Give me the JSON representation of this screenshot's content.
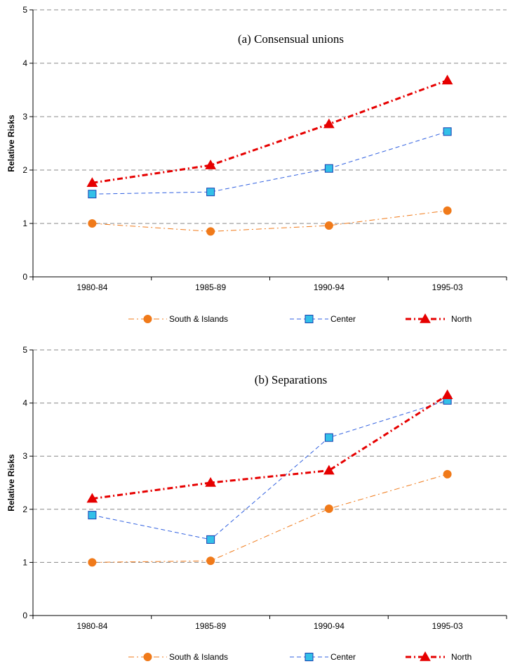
{
  "chart_data": [
    {
      "type": "line",
      "title": "(a) Consensual unions",
      "xlabel": "",
      "ylabel": "Relative Risks",
      "categories": [
        "1980-84",
        "1985-89",
        "1990-94",
        "1995-03"
      ],
      "ylim": [
        0,
        5
      ],
      "yticks": [
        0,
        1,
        2,
        3,
        4,
        5
      ],
      "grid": "horizontal dashed",
      "legend_position": "bottom",
      "series": [
        {
          "name": "South & Islands",
          "values": [
            1.0,
            0.85,
            0.96,
            1.24
          ],
          "color": "#f07a1a",
          "marker": "circle",
          "dash": "dash-dot",
          "width": 1
        },
        {
          "name": "Center",
          "values": [
            1.55,
            1.59,
            2.03,
            2.72
          ],
          "color": "#3060e0",
          "marker": "square",
          "dash": "dash",
          "width": 1
        },
        {
          "name": "North",
          "values": [
            1.76,
            2.09,
            2.86,
            3.68
          ],
          "color": "#e60000",
          "marker": "triangle",
          "dash": "dash-dot",
          "width": 3
        }
      ]
    },
    {
      "type": "line",
      "title": "(b) Separations",
      "xlabel": "",
      "ylabel": "Relative Risks",
      "categories": [
        "1980-84",
        "1985-89",
        "1990-94",
        "1995-03"
      ],
      "ylim": [
        0,
        5
      ],
      "yticks": [
        0,
        1,
        2,
        3,
        4,
        5
      ],
      "grid": "horizontal dashed",
      "legend_position": "bottom",
      "series": [
        {
          "name": "South & Islands",
          "values": [
            1.0,
            1.03,
            2.01,
            2.66
          ],
          "color": "#f07a1a",
          "marker": "circle",
          "dash": "dash-dot",
          "width": 1
        },
        {
          "name": "Center",
          "values": [
            1.89,
            1.43,
            3.35,
            4.05
          ],
          "color": "#3060e0",
          "marker": "square",
          "dash": "dash",
          "width": 1
        },
        {
          "name": "North",
          "values": [
            2.2,
            2.5,
            2.73,
            4.15
          ],
          "color": "#e60000",
          "marker": "triangle",
          "dash": "dash-dot",
          "width": 3
        }
      ]
    }
  ]
}
